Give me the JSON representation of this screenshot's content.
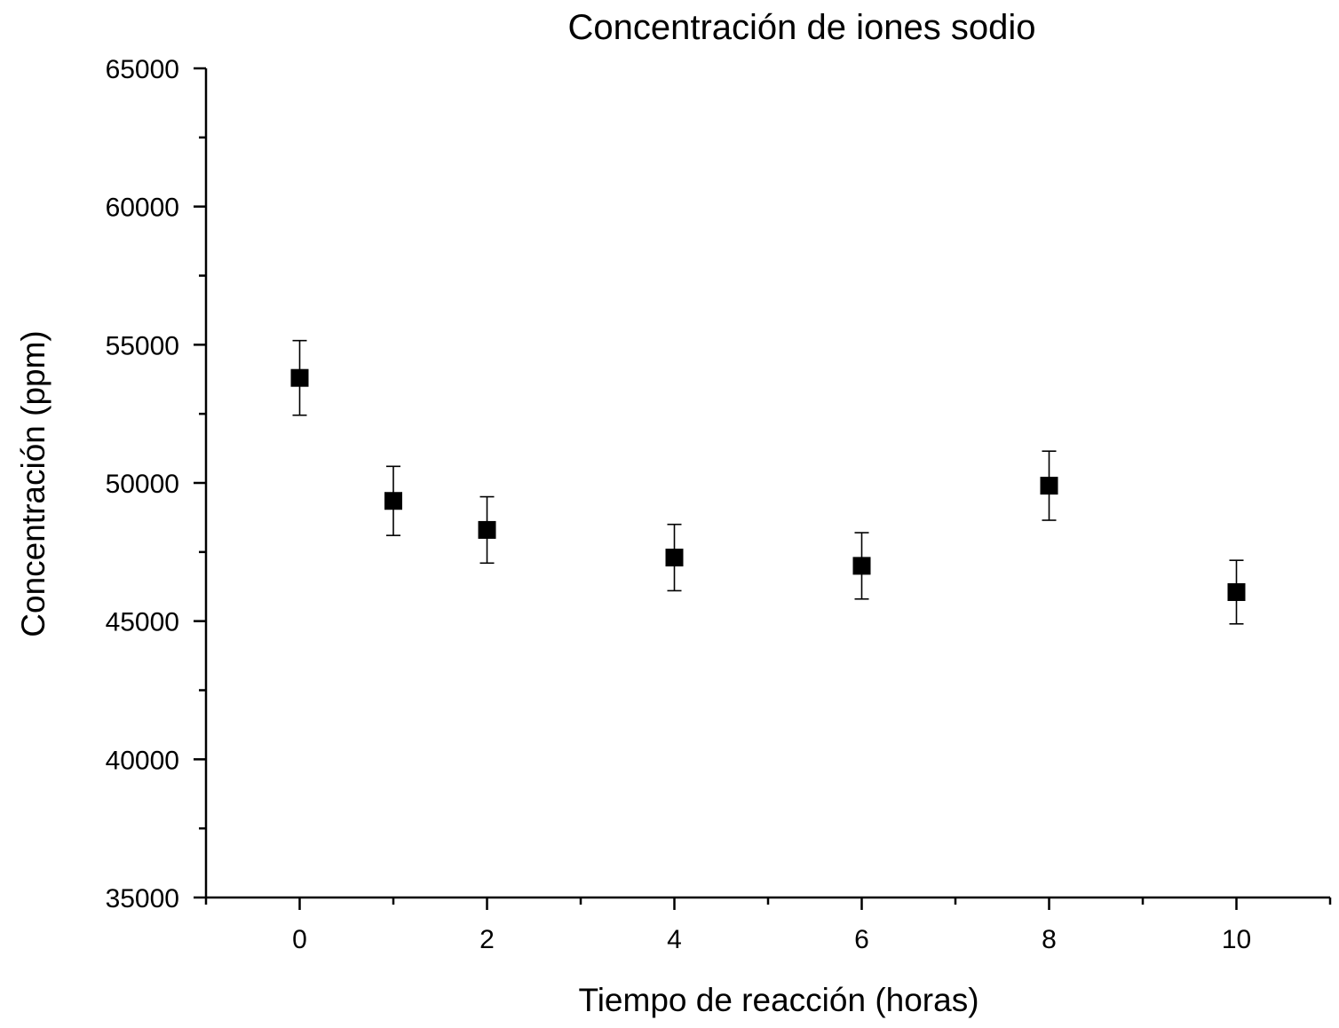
{
  "chart_data": {
    "type": "scatter",
    "title": "Concentración de iones sodio",
    "xlabel": "Tiempo de reacción (horas)",
    "ylabel": "Concentración (ppm)",
    "xlim": [
      -1,
      11
    ],
    "ylim": [
      35000,
      65000
    ],
    "x_ticks": [
      0,
      2,
      4,
      6,
      8,
      10
    ],
    "x_tick_labels": [
      "0",
      "2",
      "4",
      "6",
      "8",
      "10"
    ],
    "x_minor_ticks": [
      -1,
      1,
      3,
      5,
      7,
      9,
      11
    ],
    "y_ticks": [
      35000,
      40000,
      45000,
      50000,
      55000,
      60000,
      65000
    ],
    "y_tick_labels": [
      "35000",
      "40000",
      "45000",
      "50000",
      "55000",
      "60000",
      "65000"
    ],
    "y_minor_ticks": [
      37500,
      42500,
      47500,
      52500,
      57500,
      62500
    ],
    "grid": false,
    "legend": "none",
    "marker": "square",
    "marker_color": "#000000",
    "series": [
      {
        "x": [
          0,
          1,
          2,
          4,
          6,
          8,
          10
        ],
        "y": [
          53800,
          49350,
          48300,
          47300,
          47000,
          49900,
          46050
        ],
        "error": [
          1350,
          1250,
          1200,
          1200,
          1200,
          1250,
          1150
        ]
      }
    ]
  }
}
